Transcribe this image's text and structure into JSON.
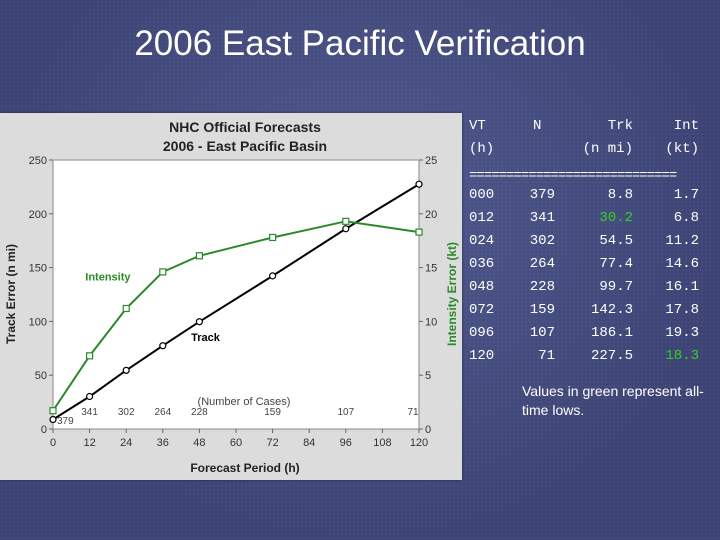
{
  "slide": {
    "title": "2006 East Pacific Verification",
    "note": "Values in green represent all-time lows."
  },
  "table": {
    "headers": {
      "vt": "VT",
      "n": "N",
      "trk": "Trk",
      "int": "Int"
    },
    "units": {
      "vt": "(h)",
      "trk": "(n mi)",
      "int": "(kt)"
    },
    "rule": "============================",
    "rows": [
      {
        "vt": "000",
        "n": "379",
        "trk": "8.8",
        "int": "1.7",
        "trk_low": false,
        "int_low": false
      },
      {
        "vt": "012",
        "n": "341",
        "trk": "30.2",
        "int": "6.8",
        "trk_low": true,
        "int_low": false
      },
      {
        "vt": "024",
        "n": "302",
        "trk": "54.5",
        "int": "11.2",
        "trk_low": false,
        "int_low": false
      },
      {
        "vt": "036",
        "n": "264",
        "trk": "77.4",
        "int": "14.6",
        "trk_low": false,
        "int_low": false
      },
      {
        "vt": "048",
        "n": "228",
        "trk": "99.7",
        "int": "16.1",
        "trk_low": false,
        "int_low": false
      },
      {
        "vt": "072",
        "n": "159",
        "trk": "142.3",
        "int": "17.8",
        "trk_low": false,
        "int_low": false
      },
      {
        "vt": "096",
        "n": "107",
        "trk": "186.1",
        "int": "19.3",
        "trk_low": false,
        "int_low": false
      },
      {
        "vt": "120",
        "n": "71",
        "trk": "227.5",
        "int": "18.3",
        "trk_low": false,
        "int_low": true
      }
    ],
    "low_color": "#33d11f"
  },
  "chart_data": {
    "type": "line",
    "title": "NHC Official Forecasts",
    "subtitle": "2006 - East Pacific Basin",
    "xlabel": "Forecast Period (h)",
    "ylabel_left": "Track Error (n mi)",
    "ylabel_right": "Intensity Error (kt)",
    "x": [
      0,
      12,
      24,
      36,
      48,
      72,
      96,
      120
    ],
    "x_ticks": [
      0,
      12,
      24,
      36,
      48,
      60,
      72,
      84,
      96,
      108,
      120
    ],
    "xlim": [
      0,
      120
    ],
    "ylim_left": [
      0,
      250
    ],
    "ylim_right": [
      0,
      25
    ],
    "y_ticks_left": [
      0,
      50,
      100,
      150,
      200,
      250
    ],
    "y_ticks_right": [
      0,
      5,
      10,
      15,
      20,
      25
    ],
    "grid": false,
    "series": [
      {
        "name": "Track",
        "axis": "left",
        "color": "#000000",
        "values": [
          8.8,
          30.2,
          54.5,
          77.4,
          99.7,
          142.3,
          186.1,
          227.5
        ]
      },
      {
        "name": "Intensity",
        "axis": "right",
        "color": "#2a8a2a",
        "values": [
          1.7,
          6.8,
          11.2,
          14.6,
          16.1,
          17.8,
          19.3,
          18.3
        ]
      }
    ],
    "cases_label": "(Number of Cases)",
    "cases": [
      379,
      341,
      302,
      264,
      228,
      159,
      107,
      71
    ]
  }
}
